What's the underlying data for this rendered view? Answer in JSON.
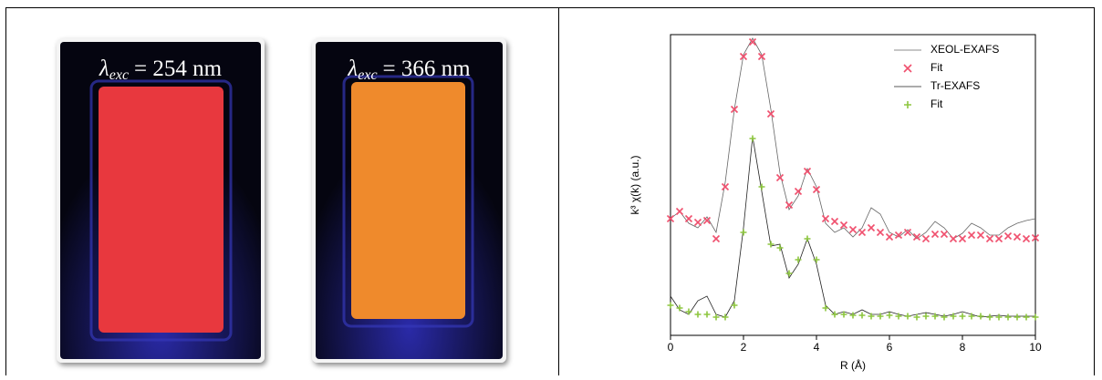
{
  "photos": [
    {
      "symbol": "λ",
      "subscript": "exc",
      "text": "= 254 nm",
      "color": "#e8383e"
    },
    {
      "symbol": "λ",
      "subscript": "exc",
      "text": "= 366 nm",
      "color": "#ef8a2c"
    }
  ],
  "chart_data": {
    "type": "line",
    "xlabel": "R (Å)",
    "ylabel": "k³ χ(k) (a.u.)",
    "x": [
      0,
      0.25,
      0.5,
      0.75,
      1,
      1.25,
      1.5,
      1.75,
      2,
      2.25,
      2.5,
      2.75,
      3,
      3.25,
      3.5,
      3.75,
      4,
      4.25,
      4.5,
      4.75,
      5,
      5.25,
      5.5,
      5.75,
      6,
      6.25,
      6.5,
      6.75,
      7,
      7.25,
      7.5,
      7.75,
      8,
      8.25,
      8.5,
      8.75,
      9,
      9.25,
      9.5,
      9.75,
      10
    ],
    "xlim": [
      0,
      10
    ],
    "xticks": [
      0,
      2,
      4,
      6,
      8,
      10
    ],
    "ylim": [
      0,
      330
    ],
    "legend": "upper right",
    "series": [
      {
        "name": "XEOL-EXAFS",
        "color": "#666666",
        "style": "line",
        "values": [
          128,
          136,
          123,
          118,
          130,
          113,
          168,
          248,
          308,
          326,
          308,
          248,
          178,
          138,
          153,
          183,
          163,
          123,
          113,
          118,
          108,
          118,
          140,
          133,
          113,
          108,
          116,
          106,
          113,
          125,
          118,
          106,
          112,
          123,
          118,
          110,
          110,
          118,
          123,
          126,
          128
        ]
      },
      {
        "name": "Fit",
        "color": "#f0506e",
        "style": "x",
        "values": [
          128,
          136,
          128,
          124,
          126,
          106,
          163,
          248,
          306,
          322,
          306,
          243,
          173,
          143,
          158,
          180,
          160,
          128,
          125,
          121,
          116,
          113,
          118,
          113,
          108,
          110,
          113,
          108,
          106,
          111,
          111,
          106,
          106,
          110,
          110,
          106,
          106,
          109,
          108,
          106,
          107
        ]
      },
      {
        "name": "Tr-EXAFS",
        "color": "#222222",
        "style": "line",
        "values": [
          43,
          28,
          23,
          38,
          43,
          23,
          20,
          38,
          118,
          218,
          158,
          98,
          100,
          63,
          78,
          106,
          78,
          33,
          23,
          26,
          23,
          28,
          23,
          23,
          26,
          23,
          21,
          23,
          25,
          23,
          21,
          23,
          26,
          23,
          20,
          21,
          22,
          21,
          21,
          21,
          21
        ]
      },
      {
        "name": "Fit",
        "color": "#8dc63f",
        "style": "+",
        "values": [
          33,
          30,
          26,
          23,
          23,
          20,
          20,
          33,
          113,
          216,
          163,
          100,
          96,
          68,
          83,
          106,
          83,
          30,
          23,
          23,
          22,
          22,
          21,
          21,
          22,
          21,
          21,
          20,
          21,
          21,
          20,
          21,
          21,
          21,
          21,
          20,
          20,
          20,
          20,
          20,
          20
        ]
      }
    ]
  }
}
